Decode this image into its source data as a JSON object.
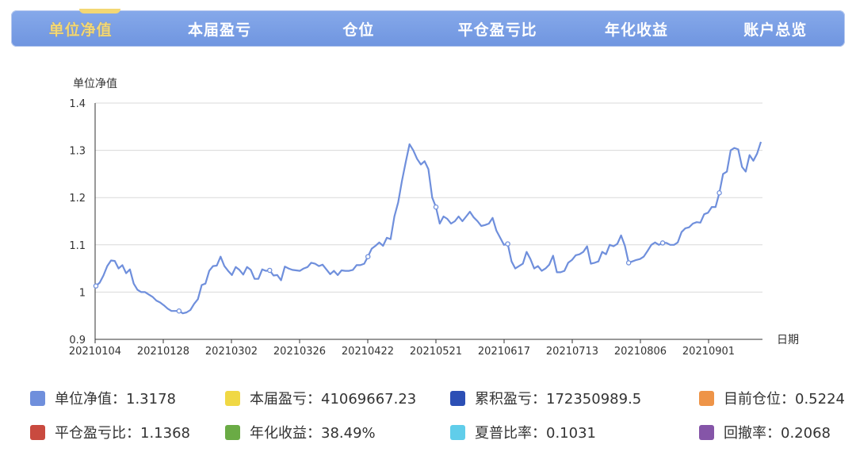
{
  "tabs": [
    {
      "label": "单位净值",
      "active": true
    },
    {
      "label": "本届盈亏",
      "active": false
    },
    {
      "label": "仓位",
      "active": false
    },
    {
      "label": "平仓盈亏比",
      "active": false
    },
    {
      "label": "年化收益",
      "active": false
    },
    {
      "label": "账户总览",
      "active": false
    }
  ],
  "legend": [
    {
      "label": "单位净值：1.3178",
      "color": "#6f8fdc"
    },
    {
      "label": "本届盈亏：41069667.23",
      "color": "#f0d844"
    },
    {
      "label": "累积盈亏：172350989.5",
      "color": "#2c4fb5"
    },
    {
      "label": "目前仓位：0.5224",
      "color": "#ee9448"
    },
    {
      "label": "平仓盈亏比：1.1368",
      "color": "#c94a3f"
    },
    {
      "label": "年化收益：38.49%",
      "color": "#6aab45"
    },
    {
      "label": "夏普比率：0.1031",
      "color": "#60cdea"
    },
    {
      "label": "回撤率：0.2068",
      "color": "#8555a8"
    }
  ],
  "chart_data": {
    "type": "line",
    "ylabel": "单位净值",
    "xlabel": "日期",
    "ylim": [
      0.9,
      1.4
    ],
    "yticks": [
      "0.9",
      "1",
      "1.1",
      "1.2",
      "1.3",
      "1.4"
    ],
    "xticks": [
      "20210104",
      "20210128",
      "20210302",
      "20210326",
      "20210422",
      "20210521",
      "20210617",
      "20210713",
      "20210806",
      "20210901"
    ],
    "grid": true,
    "line_color": "#6f8fdc",
    "series": [
      {
        "values": [
          1.013,
          1.02,
          1.035,
          1.055,
          1.067,
          1.066,
          1.05,
          1.057,
          1.04,
          1.048,
          1.018,
          1.005,
          1.0,
          1.0,
          0.995,
          0.99,
          0.982,
          0.978,
          0.972,
          0.965,
          0.96,
          0.96,
          0.96,
          0.955,
          0.957,
          0.962,
          0.975,
          0.985,
          1.015,
          1.018,
          1.045,
          1.055,
          1.056,
          1.075,
          1.055,
          1.045,
          1.036,
          1.053,
          1.047,
          1.037,
          1.053,
          1.047,
          1.028,
          1.028,
          1.048,
          1.045,
          1.046,
          1.035,
          1.036,
          1.025,
          1.054,
          1.05,
          1.047,
          1.046,
          1.045,
          1.05,
          1.053,
          1.062,
          1.06,
          1.055,
          1.058,
          1.048,
          1.038,
          1.045,
          1.036,
          1.046,
          1.045,
          1.045,
          1.047,
          1.057,
          1.057,
          1.06,
          1.075,
          1.092,
          1.098,
          1.105,
          1.098,
          1.115,
          1.112,
          1.16,
          1.19,
          1.235,
          1.275,
          1.313,
          1.3,
          1.282,
          1.27,
          1.277,
          1.26,
          1.2,
          1.18,
          1.145,
          1.16,
          1.155,
          1.145,
          1.15,
          1.16,
          1.15,
          1.16,
          1.17,
          1.158,
          1.15,
          1.14,
          1.142,
          1.145,
          1.157,
          1.13,
          1.115,
          1.1,
          1.102,
          1.065,
          1.05,
          1.055,
          1.06,
          1.085,
          1.07,
          1.05,
          1.055,
          1.045,
          1.05,
          1.058,
          1.077,
          1.042,
          1.042,
          1.045,
          1.062,
          1.068,
          1.078,
          1.08,
          1.085,
          1.097,
          1.06,
          1.062,
          1.065,
          1.085,
          1.08,
          1.1,
          1.097,
          1.102,
          1.12,
          1.098,
          1.062,
          1.065,
          1.068,
          1.07,
          1.075,
          1.087,
          1.1,
          1.105,
          1.1,
          1.104,
          1.104,
          1.1,
          1.1,
          1.105,
          1.127,
          1.135,
          1.137,
          1.145,
          1.148,
          1.147,
          1.165,
          1.168,
          1.18,
          1.18,
          1.21,
          1.25,
          1.255,
          1.3,
          1.305,
          1.302,
          1.265,
          1.255,
          1.29,
          1.278,
          1.293,
          1.318
        ],
        "markers": [
          0,
          22,
          46,
          72,
          109,
          90,
          141,
          150,
          165
        ]
      }
    ]
  }
}
